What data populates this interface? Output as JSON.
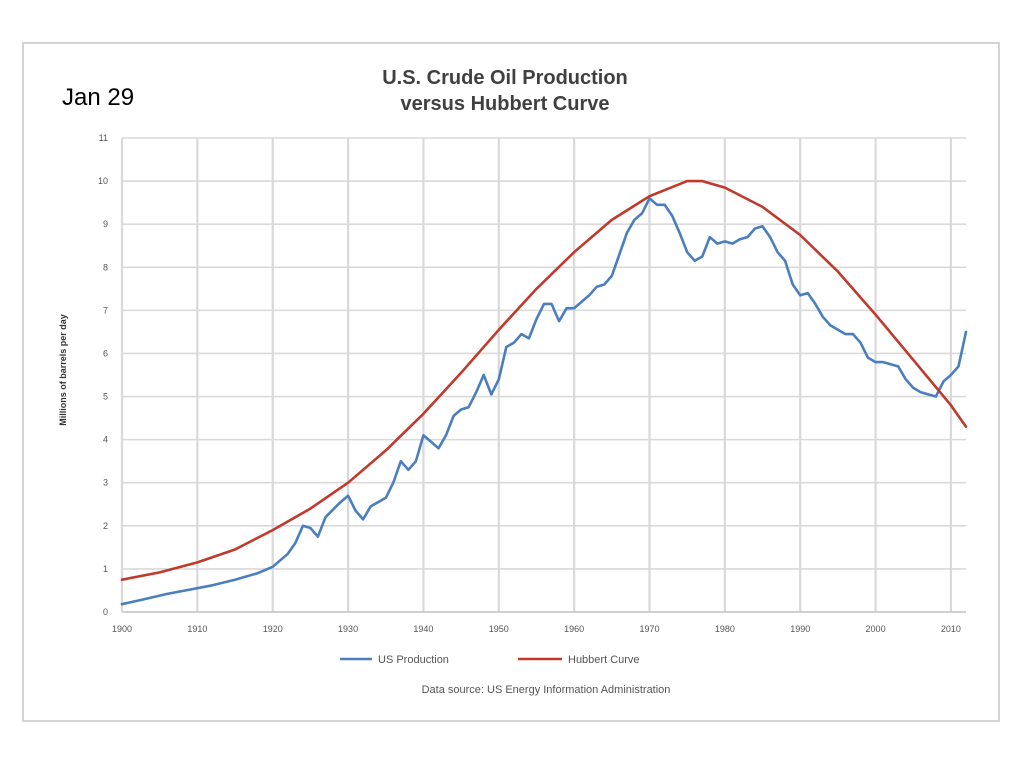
{
  "slide": {
    "date_label": "Jan 29"
  },
  "chart_data": {
    "type": "line",
    "title_lines": [
      "U.S. Crude Oil Production",
      "versus Hubbert Curve"
    ],
    "xlabel": "",
    "ylabel": "Millions of barrels per day",
    "xlim": [
      1900,
      2012
    ],
    "ylim": [
      0,
      11
    ],
    "x_ticks": [
      1900,
      1910,
      1920,
      1930,
      1940,
      1950,
      1960,
      1970,
      1980,
      1990,
      2000,
      2010
    ],
    "y_ticks": [
      0,
      1,
      2,
      3,
      4,
      5,
      6,
      7,
      8,
      9,
      10,
      11
    ],
    "grid": true,
    "legend_position": "bottom",
    "source_note": "Data source: US Energy Information Administration",
    "series": [
      {
        "name": "US Production",
        "color": "#4a7ebf",
        "points": [
          [
            1900,
            0.18
          ],
          [
            1903,
            0.3
          ],
          [
            1906,
            0.42
          ],
          [
            1909,
            0.52
          ],
          [
            1912,
            0.62
          ],
          [
            1915,
            0.75
          ],
          [
            1918,
            0.9
          ],
          [
            1920,
            1.05
          ],
          [
            1922,
            1.35
          ],
          [
            1923,
            1.6
          ],
          [
            1924,
            2.0
          ],
          [
            1925,
            1.95
          ],
          [
            1926,
            1.75
          ],
          [
            1927,
            2.2
          ],
          [
            1929,
            2.55
          ],
          [
            1930,
            2.7
          ],
          [
            1931,
            2.35
          ],
          [
            1932,
            2.15
          ],
          [
            1933,
            2.45
          ],
          [
            1935,
            2.65
          ],
          [
            1936,
            3.0
          ],
          [
            1937,
            3.5
          ],
          [
            1938,
            3.3
          ],
          [
            1939,
            3.5
          ],
          [
            1940,
            4.1
          ],
          [
            1941,
            3.95
          ],
          [
            1942,
            3.8
          ],
          [
            1943,
            4.1
          ],
          [
            1944,
            4.55
          ],
          [
            1945,
            4.7
          ],
          [
            1946,
            4.75
          ],
          [
            1947,
            5.1
          ],
          [
            1948,
            5.5
          ],
          [
            1949,
            5.05
          ],
          [
            1950,
            5.4
          ],
          [
            1951,
            6.15
          ],
          [
            1952,
            6.25
          ],
          [
            1953,
            6.45
          ],
          [
            1954,
            6.35
          ],
          [
            1955,
            6.8
          ],
          [
            1956,
            7.15
          ],
          [
            1957,
            7.15
          ],
          [
            1958,
            6.75
          ],
          [
            1959,
            7.05
          ],
          [
            1960,
            7.05
          ],
          [
            1961,
            7.2
          ],
          [
            1962,
            7.35
          ],
          [
            1963,
            7.55
          ],
          [
            1964,
            7.6
          ],
          [
            1965,
            7.8
          ],
          [
            1966,
            8.3
          ],
          [
            1967,
            8.8
          ],
          [
            1968,
            9.1
          ],
          [
            1969,
            9.25
          ],
          [
            1970,
            9.6
          ],
          [
            1971,
            9.45
          ],
          [
            1972,
            9.45
          ],
          [
            1973,
            9.2
          ],
          [
            1974,
            8.8
          ],
          [
            1975,
            8.35
          ],
          [
            1976,
            8.15
          ],
          [
            1977,
            8.25
          ],
          [
            1978,
            8.7
          ],
          [
            1979,
            8.55
          ],
          [
            1980,
            8.6
          ],
          [
            1981,
            8.55
          ],
          [
            1982,
            8.65
          ],
          [
            1983,
            8.7
          ],
          [
            1984,
            8.9
          ],
          [
            1985,
            8.95
          ],
          [
            1986,
            8.7
          ],
          [
            1987,
            8.35
          ],
          [
            1988,
            8.15
          ],
          [
            1989,
            7.6
          ],
          [
            1990,
            7.35
          ],
          [
            1991,
            7.4
          ],
          [
            1992,
            7.15
          ],
          [
            1993,
            6.85
          ],
          [
            1994,
            6.65
          ],
          [
            1995,
            6.55
          ],
          [
            1996,
            6.45
          ],
          [
            1997,
            6.45
          ],
          [
            1998,
            6.25
          ],
          [
            1999,
            5.9
          ],
          [
            2000,
            5.8
          ],
          [
            2001,
            5.8
          ],
          [
            2002,
            5.75
          ],
          [
            2003,
            5.7
          ],
          [
            2004,
            5.4
          ],
          [
            2005,
            5.2
          ],
          [
            2006,
            5.1
          ],
          [
            2007,
            5.05
          ],
          [
            2008,
            5.0
          ],
          [
            2009,
            5.35
          ],
          [
            2010,
            5.5
          ],
          [
            2011,
            5.7
          ],
          [
            2012,
            6.5
          ]
        ]
      },
      {
        "name": "Hubbert Curve",
        "color": "#c0392b",
        "points": [
          [
            1900,
            0.75
          ],
          [
            1905,
            0.92
          ],
          [
            1910,
            1.15
          ],
          [
            1915,
            1.45
          ],
          [
            1920,
            1.9
          ],
          [
            1925,
            2.4
          ],
          [
            1930,
            3.0
          ],
          [
            1935,
            3.75
          ],
          [
            1940,
            4.6
          ],
          [
            1945,
            5.55
          ],
          [
            1950,
            6.55
          ],
          [
            1955,
            7.5
          ],
          [
            1960,
            8.35
          ],
          [
            1965,
            9.1
          ],
          [
            1970,
            9.65
          ],
          [
            1975,
            10.0
          ],
          [
            1977,
            10.0
          ],
          [
            1980,
            9.85
          ],
          [
            1985,
            9.4
          ],
          [
            1990,
            8.75
          ],
          [
            1995,
            7.9
          ],
          [
            2000,
            6.9
          ],
          [
            2005,
            5.85
          ],
          [
            2010,
            4.8
          ],
          [
            2012,
            4.3
          ]
        ]
      }
    ]
  }
}
